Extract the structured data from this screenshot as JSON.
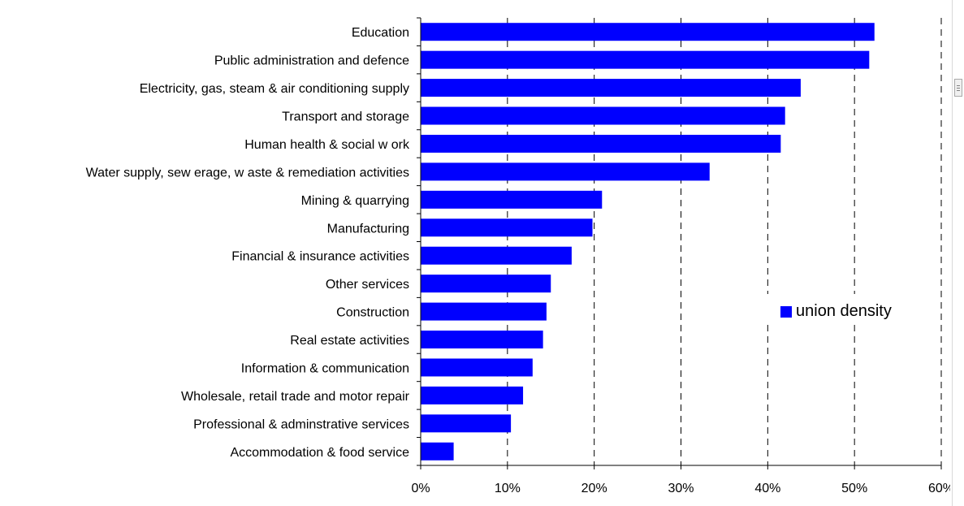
{
  "chart_data": {
    "type": "bar",
    "orientation": "horizontal",
    "categories": [
      "Education",
      "Public administration and defence",
      "Electricity, gas, steam & air conditioning supply",
      "Transport and storage",
      "Human health & social w ork",
      "Water supply, sew erage, w aste & remediation activities",
      "Mining & quarrying",
      "Manufacturing",
      "Financial & insurance activities",
      "Other services",
      "Construction",
      "Real estate activities",
      "Information & communication",
      "Wholesale, retail trade and motor repair",
      "Professional & adminstrative services",
      "Accommodation & food service"
    ],
    "series": [
      {
        "name": "union density",
        "values": [
          52.3,
          51.7,
          43.8,
          42.0,
          41.5,
          33.3,
          20.9,
          19.8,
          17.4,
          15.0,
          14.5,
          14.1,
          12.9,
          11.8,
          10.4,
          3.8
        ],
        "color": "#0000ff"
      }
    ],
    "xlim": [
      0,
      60
    ],
    "xticks": [
      "0%",
      "10%",
      "20%",
      "30%",
      "40%",
      "50%",
      "60%"
    ],
    "grid": "vertical dashed",
    "legend": "right"
  }
}
